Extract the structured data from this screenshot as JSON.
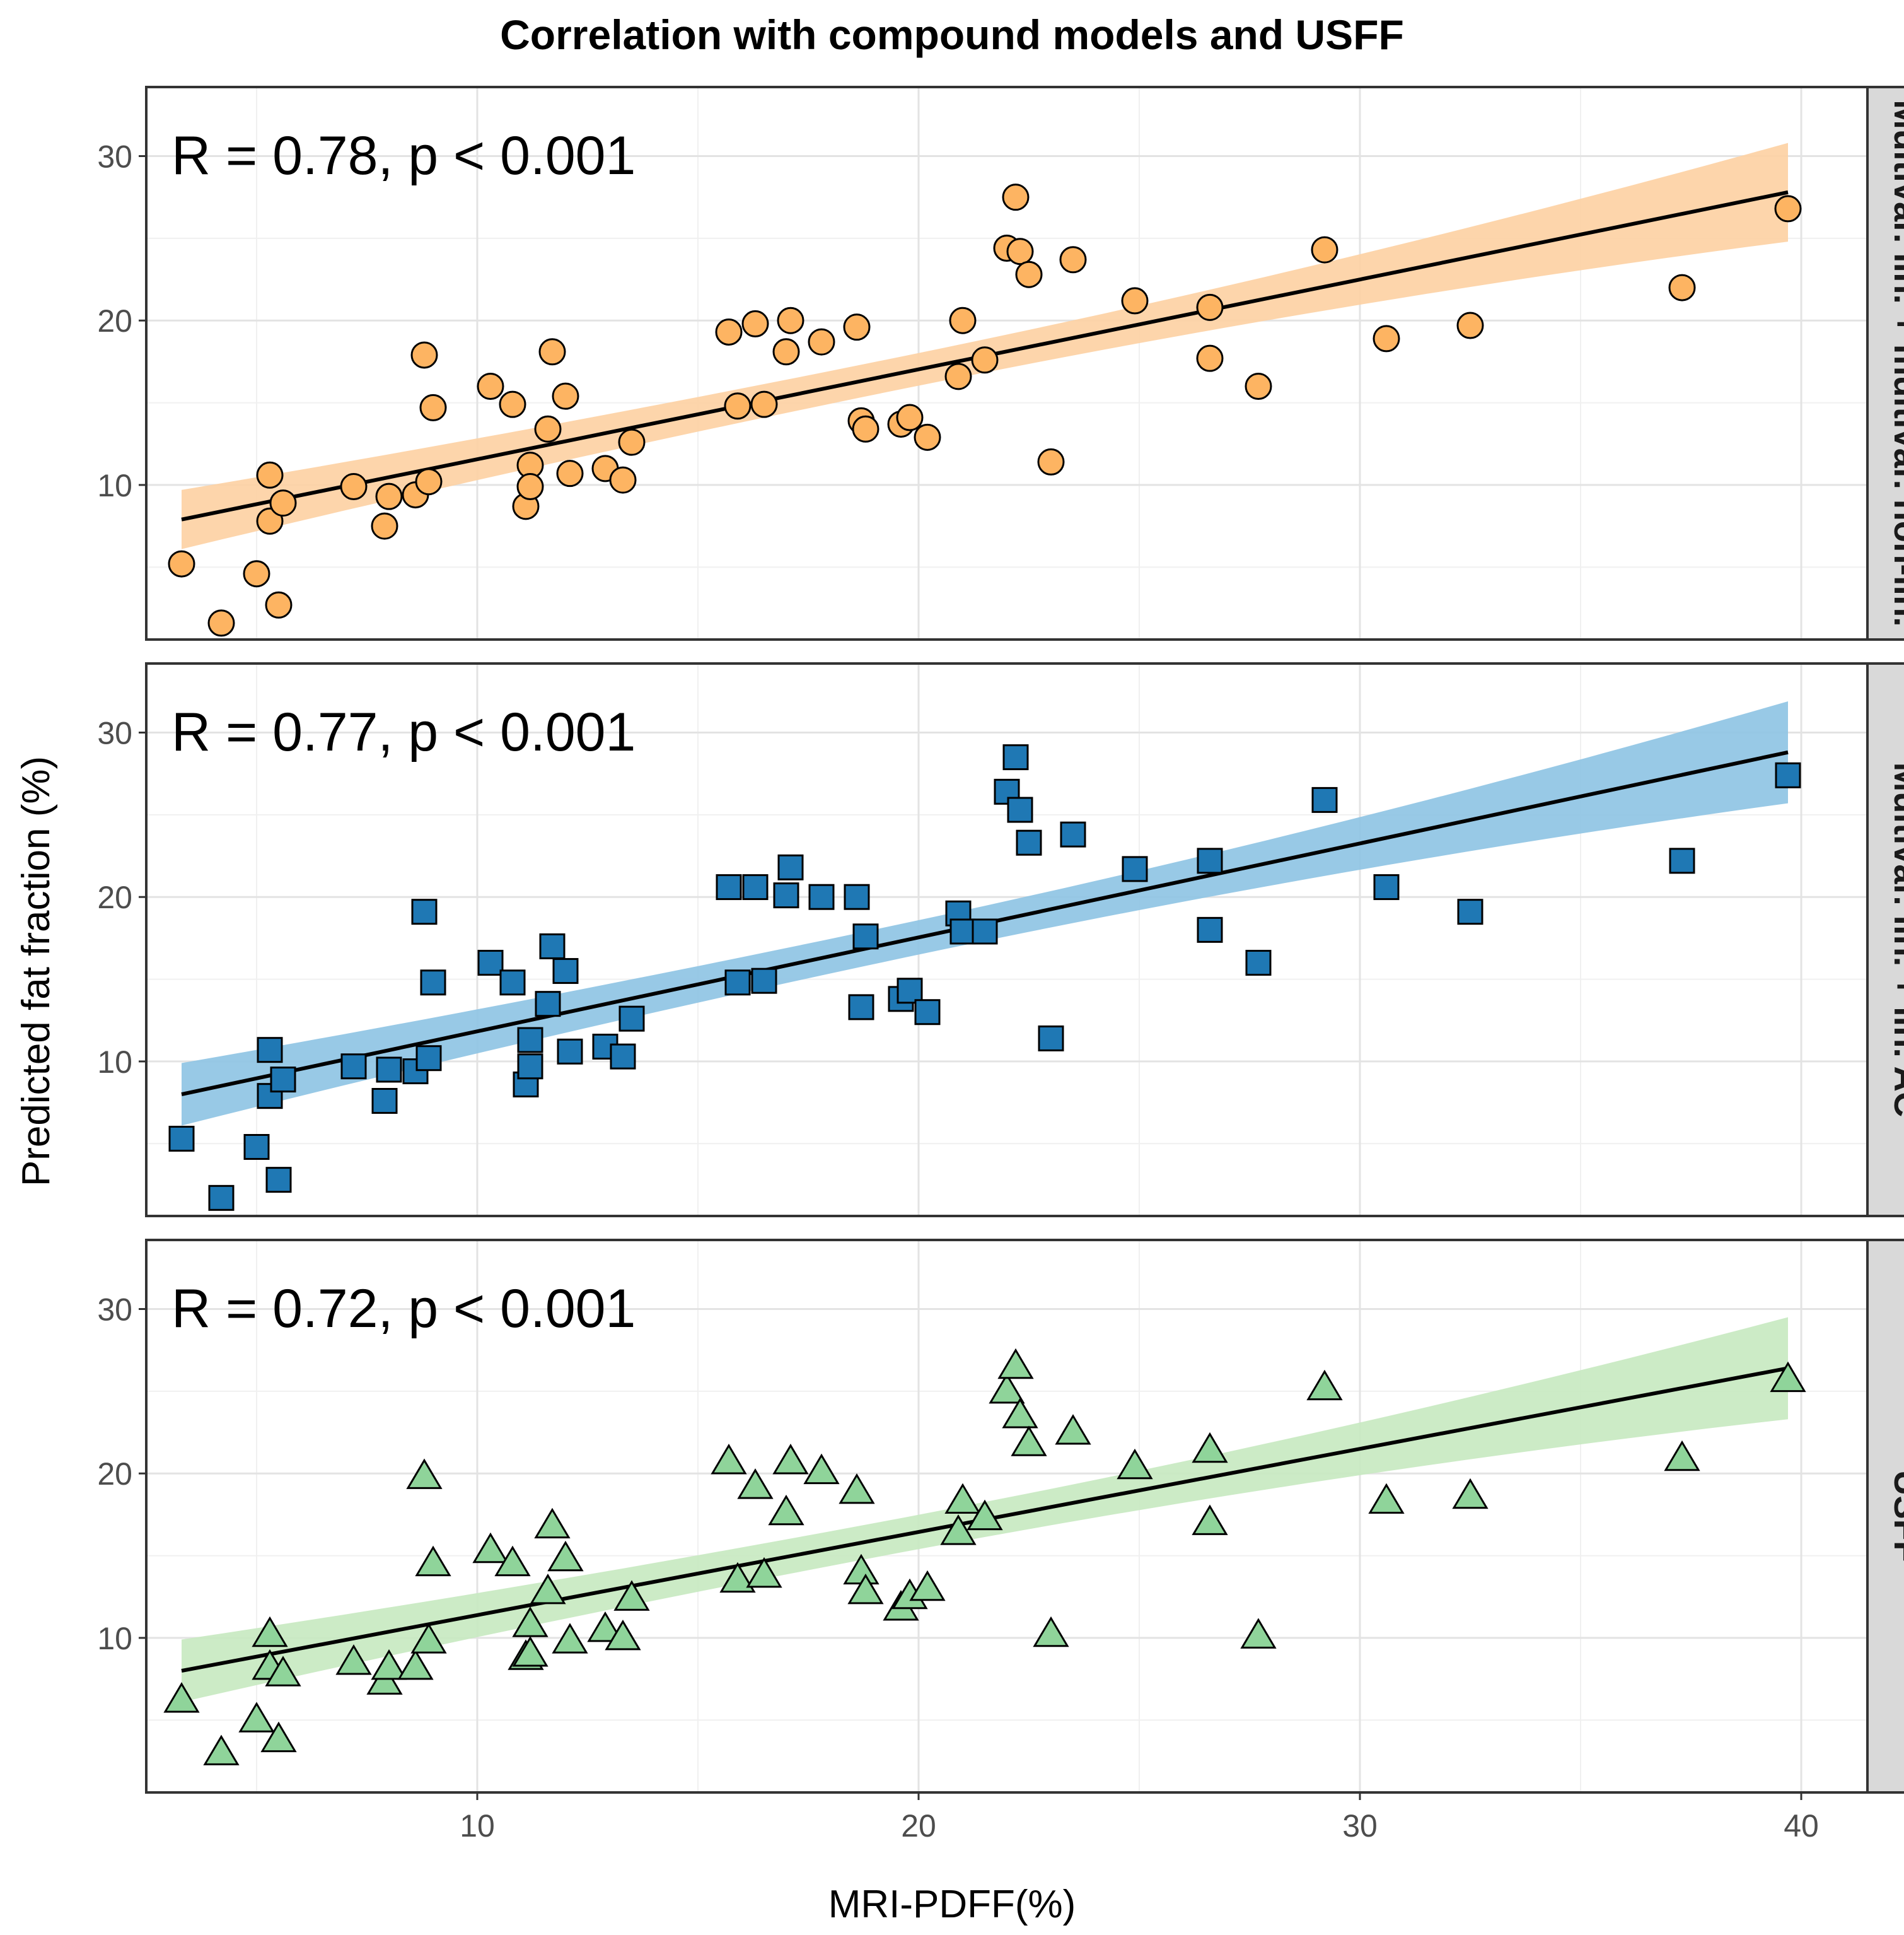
{
  "chart_data": {
    "type": "scatter",
    "title": "Correlation with compound models and USFF",
    "xlabel": "MRI-PDFF(%)",
    "ylabel": "Predicted fat fraction (%)",
    "xlim": [
      2.5,
      41.5
    ],
    "ylim": [
      0.6,
      34.2
    ],
    "xticks": [
      10,
      20,
      30,
      40
    ],
    "yticks": [
      10,
      20,
      30
    ],
    "grid": true,
    "x": [
      3.3,
      4.2,
      5.0,
      5.3,
      5.3,
      5.5,
      5.6,
      7.2,
      7.9,
      8.0,
      8.6,
      8.8,
      8.9,
      9.0,
      10.3,
      10.8,
      11.1,
      11.2,
      11.2,
      11.6,
      11.7,
      12.0,
      12.1,
      12.9,
      13.3,
      13.5,
      15.7,
      15.9,
      16.3,
      16.5,
      17.0,
      17.1,
      17.8,
      18.6,
      18.7,
      18.8,
      19.6,
      19.8,
      20.2,
      20.9,
      21.0,
      21.5,
      22.0,
      22.2,
      22.3,
      22.5,
      23.0,
      23.5,
      24.9,
      26.6,
      26.6,
      27.7,
      29.2,
      30.6,
      32.5,
      37.3,
      39.7
    ],
    "panels": [
      {
        "strip": "Multivar. lin. + multivar. non-lin.",
        "annotation": "R = 0.78, p < 0.001",
        "shape": "circle",
        "fill": "#FDB462",
        "band": "#FDD0A2",
        "y": [
          5.2,
          1.6,
          4.6,
          10.6,
          7.8,
          2.7,
          8.9,
          9.9,
          7.5,
          9.3,
          9.4,
          17.9,
          10.2,
          14.7,
          16.0,
          14.9,
          8.7,
          11.2,
          9.9,
          13.4,
          18.1,
          15.4,
          10.7,
          11.0,
          10.3,
          12.6,
          19.3,
          14.8,
          19.8,
          14.9,
          18.1,
          20.0,
          18.7,
          19.6,
          13.9,
          13.4,
          13.7,
          14.1,
          12.9,
          16.6,
          20.0,
          17.6,
          24.4,
          27.5,
          24.2,
          22.8,
          11.4,
          23.7,
          21.2,
          20.8,
          17.7,
          16.0,
          24.3,
          18.9,
          19.7,
          22.0,
          26.8
        ],
        "fit": [
          [
            3.3,
            7.9
          ],
          [
            39.7,
            27.8
          ]
        ],
        "band_halfwidth": [
          1.8,
          3.0
        ]
      },
      {
        "strip": "Multivar. lin. + lin. AC",
        "annotation": "R = 0.77, p < 0.001",
        "shape": "square",
        "fill": "#1F78B4",
        "band": "#8DC3E3",
        "y": [
          5.3,
          1.7,
          4.8,
          10.7,
          7.9,
          2.8,
          8.9,
          9.7,
          7.6,
          9.5,
          9.4,
          19.1,
          10.2,
          14.8,
          16.0,
          14.8,
          8.6,
          11.3,
          9.7,
          13.5,
          17.0,
          15.5,
          10.6,
          10.9,
          10.3,
          12.6,
          20.6,
          14.8,
          20.6,
          14.9,
          20.1,
          21.8,
          20.0,
          20.0,
          13.3,
          17.6,
          13.8,
          14.3,
          13.0,
          19.0,
          17.9,
          17.9,
          26.4,
          28.5,
          25.3,
          23.3,
          11.4,
          23.8,
          21.7,
          22.2,
          18.0,
          16.0,
          25.9,
          20.6,
          19.1,
          22.2,
          27.4
        ],
        "fit": [
          [
            3.3,
            8.0
          ],
          [
            39.7,
            28.8
          ]
        ],
        "band_halfwidth": [
          1.9,
          3.1
        ]
      },
      {
        "strip": "USFF",
        "annotation": "R = 0.72, p < 0.001",
        "shape": "triangle",
        "fill": "#8FD49A",
        "band": "#C7E9C0",
        "y": [
          6.2,
          3.0,
          5.0,
          10.2,
          8.2,
          3.8,
          7.8,
          8.5,
          7.3,
          8.2,
          8.2,
          19.8,
          9.8,
          14.5,
          15.3,
          14.5,
          8.8,
          10.8,
          9.0,
          12.8,
          16.8,
          14.8,
          9.8,
          10.5,
          10.0,
          12.4,
          20.7,
          13.5,
          19.2,
          13.8,
          17.6,
          20.7,
          20.1,
          18.9,
          14.0,
          12.8,
          11.8,
          12.5,
          13.0,
          16.4,
          18.3,
          17.3,
          25.0,
          26.5,
          23.5,
          21.8,
          10.2,
          22.5,
          20.4,
          21.4,
          17.0,
          10.1,
          25.2,
          18.3,
          18.6,
          20.9,
          25.7
        ],
        "fit": [
          [
            3.3,
            8.0
          ],
          [
            39.7,
            26.4
          ]
        ],
        "band_halfwidth": [
          1.9,
          3.1
        ]
      }
    ]
  }
}
